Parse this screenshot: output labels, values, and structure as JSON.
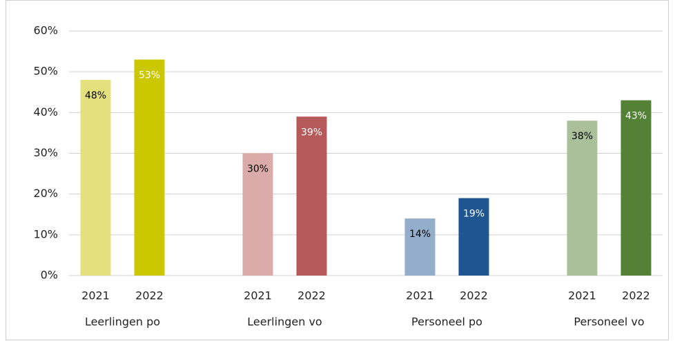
{
  "chart_data": {
    "type": "bar",
    "groups": [
      {
        "name": "Leerlingen po",
        "categories": [
          "2021",
          "2022"
        ],
        "values": [
          48,
          53
        ],
        "value_labels": [
          "48%",
          "53%"
        ],
        "colors": [
          "#e4e07e",
          "#cbc700"
        ],
        "label_colors": [
          "#000000",
          "#ffffff"
        ]
      },
      {
        "name": "Leerlingen vo",
        "categories": [
          "2021",
          "2022"
        ],
        "values": [
          30,
          39
        ],
        "value_labels": [
          "30%",
          "39%"
        ],
        "colors": [
          "#dbabaa",
          "#b55a5a"
        ],
        "label_colors": [
          "#000000",
          "#ffffff"
        ]
      },
      {
        "name": "Personeel po",
        "categories": [
          "2021",
          "2022"
        ],
        "values": [
          14,
          19
        ],
        "value_labels": [
          "14%",
          "19%"
        ],
        "colors": [
          "#93adca",
          "#1f5591"
        ],
        "label_colors": [
          "#000000",
          "#ffffff"
        ]
      },
      {
        "name": "Personeel vo",
        "categories": [
          "2021",
          "2022"
        ],
        "values": [
          38,
          43
        ],
        "value_labels": [
          "38%",
          "43%"
        ],
        "colors": [
          "#a9c09b",
          "#538135"
        ],
        "label_colors": [
          "#000000",
          "#ffffff"
        ]
      }
    ],
    "ylim": [
      0,
      60
    ],
    "yticks": [
      {
        "value": 0,
        "label": "0%"
      },
      {
        "value": 10,
        "label": "10%"
      },
      {
        "value": 20,
        "label": "20%"
      },
      {
        "value": 30,
        "label": "30%"
      },
      {
        "value": 40,
        "label": "40%"
      },
      {
        "value": 50,
        "label": "50%"
      },
      {
        "value": 60,
        "label": "60%"
      }
    ],
    "grid": true
  }
}
